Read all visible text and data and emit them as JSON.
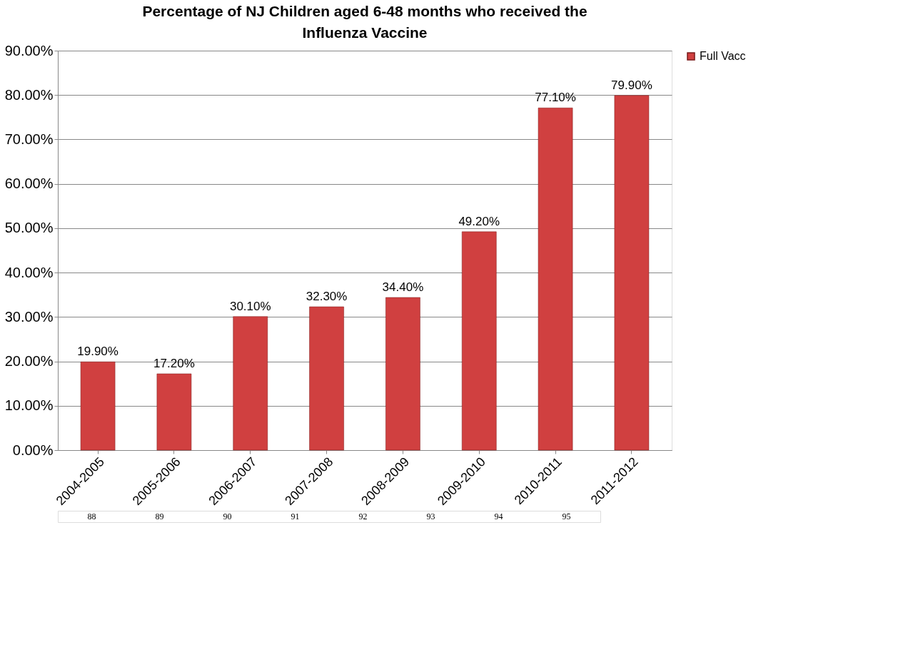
{
  "chart_data": {
    "type": "bar",
    "title": "Percentage of NJ Children aged 6-48 months who received the Influenza Vaccine",
    "categories": [
      "2004-2005",
      "2005-2006",
      "2006-2007",
      "2007-2008",
      "2008-2009",
      "2009-2010",
      "2010-2011",
      "2011-2012"
    ],
    "series": [
      {
        "name": "Full Vacc",
        "color": "#d04040",
        "values": [
          19.9,
          17.2,
          30.1,
          32.3,
          34.4,
          49.2,
          77.1,
          79.9
        ],
        "value_labels": [
          "19.90%",
          "17.20%",
          "30.10%",
          "32.30%",
          "34.40%",
          "49.20%",
          "77.10%",
          "79.90%"
        ]
      }
    ],
    "ylim": [
      0,
      90
    ],
    "yticks": [
      {
        "value": 0,
        "label": "0.00%"
      },
      {
        "value": 10,
        "label": "10.00%"
      },
      {
        "value": 20,
        "label": "20.00%"
      },
      {
        "value": 30,
        "label": "30.00%"
      },
      {
        "value": 40,
        "label": "40.00%"
      },
      {
        "value": 50,
        "label": "50.00%"
      },
      {
        "value": 60,
        "label": "60.00%"
      },
      {
        "value": 70,
        "label": "70.00%"
      },
      {
        "value": 80,
        "label": "80.00%"
      },
      {
        "value": 90,
        "label": "90.00%"
      }
    ],
    "grid": "y",
    "legend": "right",
    "annotations": [
      "88",
      "89",
      "90",
      "91",
      "92",
      "93",
      "94",
      "95"
    ]
  }
}
